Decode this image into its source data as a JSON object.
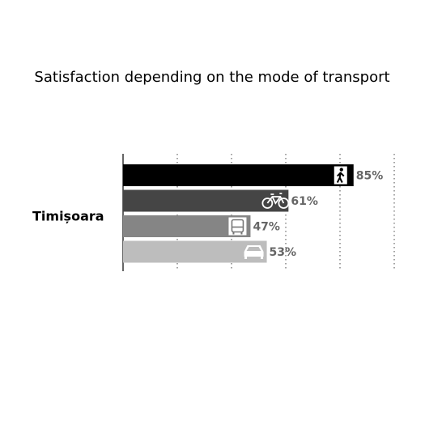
{
  "chart_data": {
    "type": "bar",
    "orientation": "horizontal",
    "title": "Satisfaction depending on the mode of transport",
    "categories": [
      "Timișoara"
    ],
    "series": [
      {
        "color": "#000000",
        "values": [
          85
        ],
        "value_labels": [
          "85%"
        ],
        "icon": "walk"
      },
      {
        "color": "#454545",
        "values": [
          61
        ],
        "value_labels": [
          "61%"
        ],
        "icon": "bike"
      },
      {
        "color": "#858585",
        "values": [
          47
        ],
        "value_labels": [
          "47%"
        ],
        "icon": "bus"
      },
      {
        "color": "#bdbdbd",
        "values": [
          53
        ],
        "value_labels": [
          "53%"
        ],
        "icon": "car"
      }
    ],
    "xlim": [
      0,
      100
    ],
    "xticks": [
      0,
      20,
      40,
      60,
      80,
      100
    ],
    "grid": true
  }
}
